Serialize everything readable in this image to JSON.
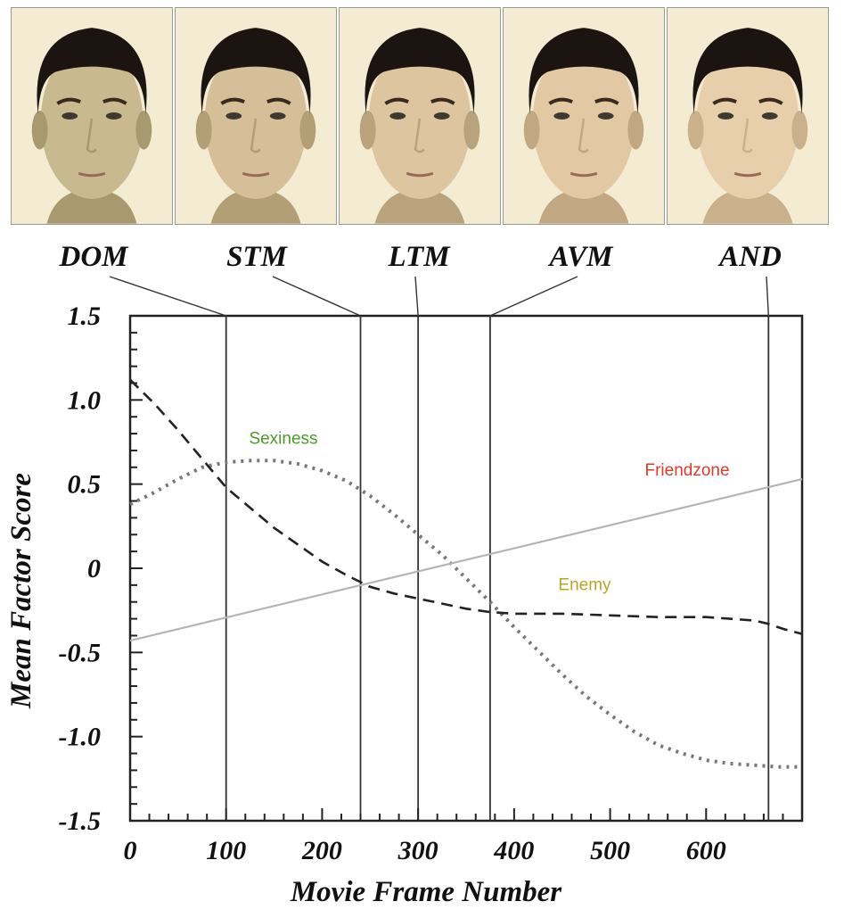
{
  "faces": [
    {
      "label": "DOM",
      "frame": 100,
      "skin": "#c9b98f",
      "shade": "#a89a6e"
    },
    {
      "label": "STM",
      "frame": 240,
      "skin": "#d4bf98",
      "shade": "#b29f76"
    },
    {
      "label": "LTM",
      "frame": 300,
      "skin": "#dcc59f",
      "shade": "#b9a37c"
    },
    {
      "label": "AVM",
      "frame": 375,
      "skin": "#e2c9a4",
      "shade": "#c2a882"
    },
    {
      "label": "AND",
      "frame": 665,
      "skin": "#e8cfac",
      "shade": "#cbb08c"
    }
  ],
  "chart_data": {
    "type": "line",
    "xlabel": "Movie Frame Number",
    "ylabel": "Mean Factor Score",
    "xlim": [
      0,
      700
    ],
    "ylim": [
      -1.5,
      1.5
    ],
    "xticks": [
      0,
      100,
      200,
      300,
      400,
      500,
      600
    ],
    "yticks": [
      1.5,
      1.0,
      0.5,
      0,
      -0.5,
      -1.0,
      -1.5
    ],
    "ytick_labels": [
      "1.5",
      "1.0",
      "0.5",
      "0",
      "-0.5",
      "-1.0",
      "-1.5"
    ],
    "grid": false,
    "series": [
      {
        "name": "Sexiness",
        "style": "dotted",
        "color": "#777777",
        "label_color": "#4a9a2a",
        "x": [
          0,
          25,
          50,
          75,
          100,
          125,
          150,
          175,
          200,
          225,
          250,
          275,
          300,
          325,
          350,
          375,
          400,
          425,
          450,
          475,
          500,
          525,
          550,
          575,
          600,
          625,
          650,
          675,
          700
        ],
        "y": [
          0.38,
          0.45,
          0.53,
          0.6,
          0.63,
          0.64,
          0.64,
          0.62,
          0.58,
          0.52,
          0.43,
          0.32,
          0.2,
          0.08,
          -0.06,
          -0.2,
          -0.35,
          -0.49,
          -0.63,
          -0.76,
          -0.87,
          -0.97,
          -1.05,
          -1.1,
          -1.14,
          -1.16,
          -1.17,
          -1.18,
          -1.18
        ]
      },
      {
        "name": "Friendzone",
        "style": "solid",
        "color": "#b5b5b5",
        "label_color": "#e03a2a",
        "x": [
          0,
          700
        ],
        "y": [
          -0.43,
          0.53
        ]
      },
      {
        "name": "Enemy",
        "style": "dashed",
        "color": "#222222",
        "label_color": "#b8a61c",
        "x": [
          0,
          25,
          50,
          75,
          100,
          125,
          150,
          175,
          200,
          225,
          250,
          275,
          300,
          325,
          350,
          375,
          400,
          450,
          500,
          550,
          600,
          625,
          650,
          665,
          680,
          700
        ],
        "y": [
          1.12,
          0.98,
          0.82,
          0.65,
          0.48,
          0.36,
          0.24,
          0.14,
          0.04,
          -0.04,
          -0.11,
          -0.15,
          -0.18,
          -0.21,
          -0.24,
          -0.26,
          -0.27,
          -0.27,
          -0.28,
          -0.29,
          -0.29,
          -0.3,
          -0.31,
          -0.33,
          -0.36,
          -0.39
        ]
      }
    ]
  }
}
